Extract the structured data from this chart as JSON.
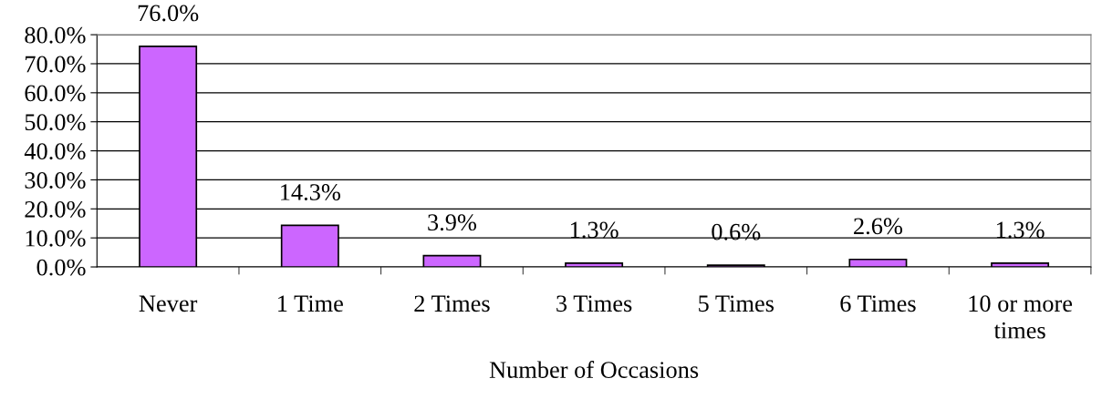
{
  "chart_data": {
    "type": "bar",
    "xlabel": "Number of Occasions",
    "categories": [
      "Never",
      "1 Time",
      "2 Times",
      "3 Times",
      "5 Times",
      "6 Times",
      "10 or more\ntimes"
    ],
    "values": [
      76.0,
      14.3,
      3.9,
      1.3,
      0.6,
      2.6,
      1.3
    ],
    "value_labels": [
      "76.0%",
      "14.3%",
      "3.9%",
      "1.3%",
      "0.6%",
      "2.6%",
      "1.3%"
    ],
    "color": "#cc66ff",
    "ylim": [
      0,
      80
    ],
    "yticks": [
      {
        "value": 0,
        "label": "0.0%"
      },
      {
        "value": 10,
        "label": "10.0%"
      },
      {
        "value": 20,
        "label": "20.0%"
      },
      {
        "value": 30,
        "label": "30.0%"
      },
      {
        "value": 40,
        "label": "40.0%"
      },
      {
        "value": 50,
        "label": "50.0%"
      },
      {
        "value": 60,
        "label": "60.0%"
      },
      {
        "value": 70,
        "label": "70.0%"
      },
      {
        "value": 80,
        "label": "80.0%"
      }
    ],
    "grid": "y"
  }
}
